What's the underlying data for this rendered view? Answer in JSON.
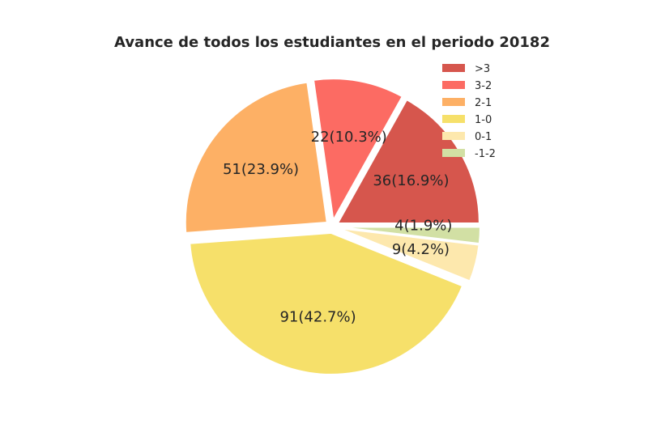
{
  "chart_data": {
    "type": "pie",
    "title": "Avance de todos los estudiantes en el periodo 20182",
    "categories": [
      ">3",
      "3-2",
      "2-1",
      "1-0",
      "0-1",
      "-1-2"
    ],
    "values": [
      36,
      22,
      51,
      91,
      9,
      4
    ],
    "labels": [
      "36(16.9%)",
      "22(10.3%)",
      "51(23.9%)",
      "91(42.7%)",
      "9(4.2%)",
      "4(1.9%)"
    ],
    "colors": [
      "#d6564d",
      "#fc6b63",
      "#fdb065",
      "#f6e06a",
      "#fde8ad",
      "#d2e0a4"
    ],
    "legend_position": "top-right",
    "grid": false
  }
}
